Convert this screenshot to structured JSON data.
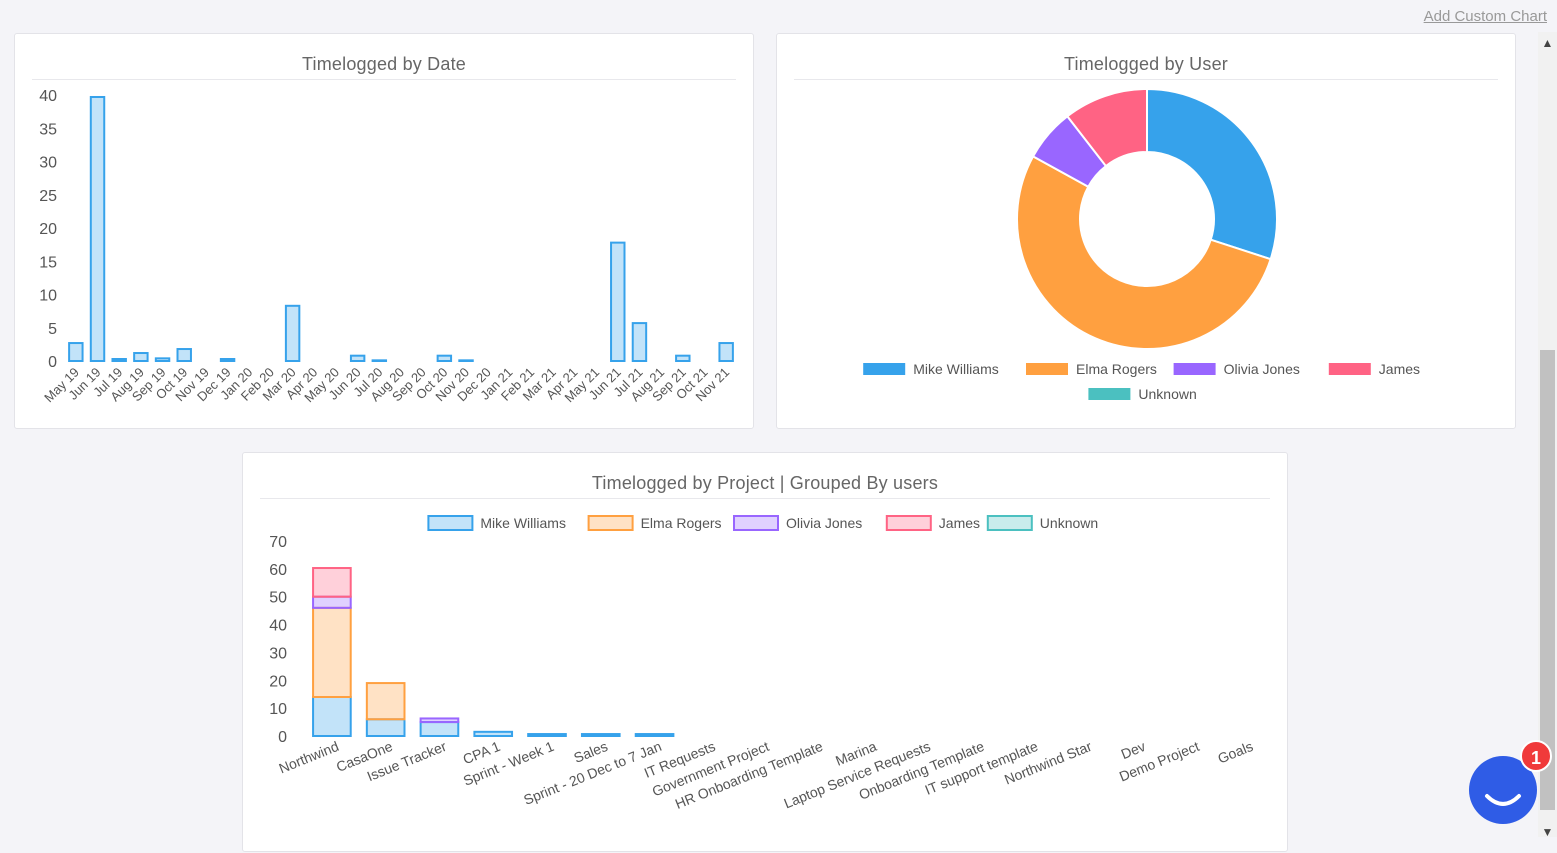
{
  "toolbar": {
    "add_custom_chart": "Add Custom Chart"
  },
  "chat": {
    "badge_count": "1"
  },
  "colors": {
    "mike": "#36a2eb",
    "elma": "#ffa040",
    "olivia": "#9966ff",
    "james": "#ff6384",
    "unknown": "#4bc0c0"
  },
  "chart_data": [
    {
      "type": "bar",
      "title": "Timelogged by Date",
      "categories": [
        "May 19",
        "Jun 19",
        "Jul 19",
        "Aug 19",
        "Sep 19",
        "Oct 19",
        "Nov 19",
        "Dec 19",
        "Jan 20",
        "Feb 20",
        "Mar 20",
        "Apr 20",
        "May 20",
        "Jun 20",
        "Jul 20",
        "Aug 20",
        "Sep 20",
        "Oct 20",
        "Nov 20",
        "Dec 20",
        "Jan 21",
        "Feb 21",
        "Mar 21",
        "Apr 21",
        "May 21",
        "Jun 21",
        "Jul 21",
        "Aug 21",
        "Sep 21",
        "Oct 21",
        "Nov 21"
      ],
      "values": [
        2.7,
        39.7,
        0.3,
        1.2,
        0.4,
        1.8,
        0,
        0.3,
        0,
        0,
        8.3,
        0,
        0,
        0.8,
        0.1,
        0,
        0,
        0.8,
        0.1,
        0,
        0,
        0,
        0,
        0,
        0,
        17.8,
        5.7,
        0,
        0.8,
        0,
        2.7
      ],
      "ylim": [
        0,
        40
      ],
      "yticks": [
        "0",
        "5",
        "10",
        "15",
        "20",
        "25",
        "30",
        "35",
        "40"
      ],
      "xlabel": "",
      "ylabel": ""
    },
    {
      "type": "pie",
      "title": "Timelogged by User",
      "labels": [
        "Mike Williams",
        "Elma Rogers",
        "Olivia Jones",
        "James",
        "Unknown"
      ],
      "values": [
        30,
        53,
        6.5,
        10.5,
        0
      ],
      "legend": "bottom"
    },
    {
      "type": "bar",
      "stacked": true,
      "title": "Timelogged by Project | Grouped By users",
      "categories": [
        "Northwind",
        "CasaOne",
        "Issue Tracker",
        "CPA 1",
        "Sprint - Week 1",
        "Sales",
        "Sprint - 20 Dec to 7 Jan",
        "IT Requests",
        "Government Project",
        "HR Onboarding Template",
        "Marina",
        "Laptop Service Requests",
        "Onboarding Template",
        "IT support template",
        "Northwind Star",
        "Dev",
        "Demo Project",
        "Goals"
      ],
      "series": [
        {
          "name": "Mike Williams",
          "values": [
            14,
            6,
            5,
            1.5,
            0.7,
            0.7,
            0.7,
            0,
            0,
            0,
            0,
            0,
            0,
            0,
            0,
            0,
            0,
            0
          ]
        },
        {
          "name": "Elma Rogers",
          "values": [
            32,
            13,
            0,
            0,
            0,
            0,
            0,
            0,
            0,
            0,
            0,
            0,
            0,
            0,
            0,
            0,
            0,
            0
          ]
        },
        {
          "name": "Olivia Jones",
          "values": [
            4,
            0,
            1.3,
            0,
            0,
            0,
            0,
            0,
            0,
            0,
            0,
            0,
            0,
            0,
            0,
            0,
            0,
            0
          ]
        },
        {
          "name": "James",
          "values": [
            10.3,
            0,
            0,
            0,
            0,
            0,
            0,
            0,
            0,
            0,
            0,
            0,
            0,
            0,
            0,
            0,
            0,
            0
          ]
        },
        {
          "name": "Unknown",
          "values": [
            0,
            0,
            0,
            0,
            0,
            0,
            0,
            0,
            0,
            0,
            0,
            0,
            0,
            0,
            0,
            0,
            0,
            0
          ]
        }
      ],
      "ylim": [
        0,
        70
      ],
      "yticks": [
        "0",
        "10",
        "20",
        "30",
        "40",
        "50",
        "60",
        "70"
      ],
      "legend": "top"
    }
  ]
}
